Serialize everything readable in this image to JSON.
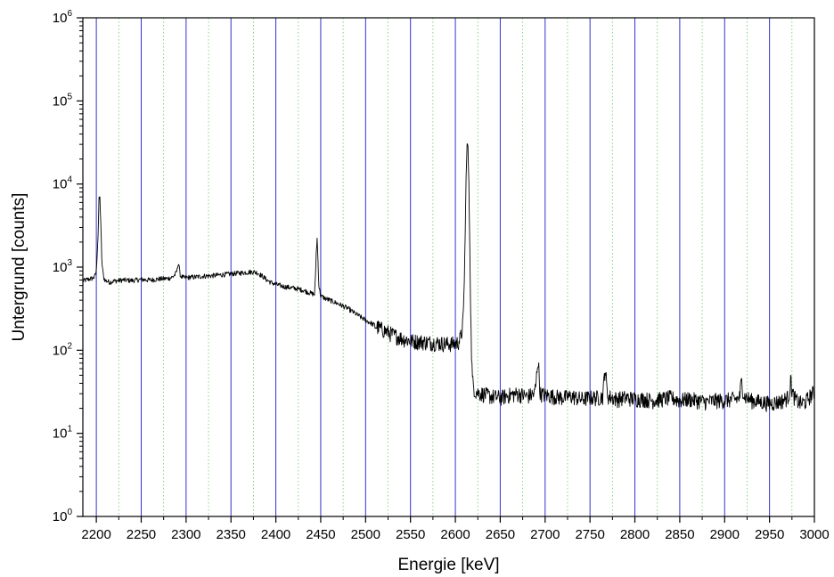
{
  "chart_data": {
    "type": "line",
    "title": "",
    "xlabel": "Energie [keV]",
    "ylabel": "Untergrund [counts]",
    "x_scale": "linear",
    "y_scale": "log",
    "xlim": [
      2185,
      3000
    ],
    "ylim": [
      1,
      1000000
    ],
    "x_ticks": [
      2200,
      2250,
      2300,
      2350,
      2400,
      2450,
      2500,
      2550,
      2600,
      2650,
      2700,
      2750,
      2800,
      2850,
      2900,
      2950,
      3000
    ],
    "x_tick_labels": [
      "2200",
      "2250",
      "2300",
      "2350",
      "2400",
      "2450",
      "2500",
      "2550",
      "2600",
      "2650",
      "2700",
      "2750",
      "2800",
      "2850",
      "2900",
      "2950",
      "3000"
    ],
    "y_tick_labels": [
      {
        "base": "10",
        "exp": "0",
        "value": 1
      },
      {
        "base": "10",
        "exp": "1",
        "value": 10
      },
      {
        "base": "10",
        "exp": "2",
        "value": 100
      },
      {
        "base": "10",
        "exp": "3",
        "value": 1000
      },
      {
        "base": "10",
        "exp": "4",
        "value": 10000
      },
      {
        "base": "10",
        "exp": "5",
        "value": 100000
      },
      {
        "base": "10",
        "exp": "6",
        "value": 1000000
      }
    ],
    "grid": {
      "major_x": true,
      "major_color": "#3333cc",
      "minor_x": true,
      "minor_color": "#66cc66"
    },
    "legend": "none",
    "series": [
      {
        "color": "#000000",
        "x": [
          2185,
          2190,
          2195,
          2198,
          2200,
          2202,
          2203,
          2204,
          2205,
          2206,
          2208,
          2210,
          2215,
          2220,
          2230,
          2240,
          2250,
          2260,
          2270,
          2280,
          2285,
          2288,
          2290,
          2291,
          2292,
          2293,
          2294,
          2296,
          2298,
          2300,
          2310,
          2320,
          2330,
          2340,
          2350,
          2360,
          2370,
          2375,
          2380,
          2385,
          2390,
          2395,
          2400,
          2410,
          2420,
          2430,
          2440,
          2443,
          2444,
          2445,
          2446,
          2447,
          2448,
          2450,
          2455,
          2460,
          2470,
          2480,
          2490,
          2500,
          2510,
          2520,
          2530,
          2540,
          2550,
          2560,
          2570,
          2580,
          2590,
          2600,
          2603,
          2605,
          2607,
          2609,
          2610,
          2611,
          2612,
          2613,
          2614,
          2615,
          2616,
          2617,
          2618,
          2619,
          2620,
          2622,
          2625,
          2630,
          2640,
          2650,
          2660,
          2670,
          2680,
          2688,
          2690,
          2691,
          2692,
          2693,
          2694,
          2695,
          2700,
          2710,
          2720,
          2730,
          2740,
          2750,
          2760,
          2764,
          2765,
          2766,
          2767,
          2768,
          2769,
          2770,
          2780,
          2790,
          2800,
          2810,
          2820,
          2830,
          2840,
          2850,
          2860,
          2870,
          2880,
          2890,
          2900,
          2910,
          2915,
          2917,
          2918,
          2919,
          2920,
          2922,
          2930,
          2940,
          2950,
          2960,
          2965,
          2970,
          2972,
          2973,
          2974,
          2975,
          2977,
          2980,
          2985,
          2990,
          2995,
          3000
        ],
        "y": [
          680,
          710,
          730,
          760,
          900,
          2500,
          6500,
          6800,
          3500,
          1200,
          760,
          690,
          660,
          680,
          700,
          690,
          710,
          700,
          720,
          730,
          760,
          820,
          920,
          1100,
          1080,
          850,
          780,
          760,
          740,
          750,
          760,
          780,
          790,
          810,
          830,
          850,
          870,
          880,
          850,
          780,
          700,
          650,
          620,
          580,
          560,
          530,
          480,
          470,
          700,
          1500,
          2200,
          1200,
          600,
          450,
          420,
          400,
          360,
          320,
          270,
          230,
          200,
          175,
          155,
          140,
          130,
          128,
          125,
          123,
          120,
          120,
          125,
          135,
          160,
          300,
          700,
          2500,
          12000,
          30000,
          28000,
          10000,
          2000,
          300,
          90,
          45,
          38,
          32,
          31,
          30,
          28,
          27,
          29,
          30,
          28,
          30,
          40,
          60,
          75,
          60,
          35,
          30,
          29,
          28,
          27,
          28,
          26,
          27,
          27,
          28,
          35,
          50,
          60,
          45,
          32,
          28,
          26,
          27,
          26,
          26,
          25,
          26,
          27,
          25,
          26,
          25,
          24,
          25,
          25,
          26,
          26,
          28,
          38,
          42,
          35,
          28,
          25,
          24,
          23,
          24,
          25,
          27,
          30,
          38,
          45,
          32,
          28,
          25,
          23,
          24,
          28,
          32
        ]
      }
    ]
  }
}
